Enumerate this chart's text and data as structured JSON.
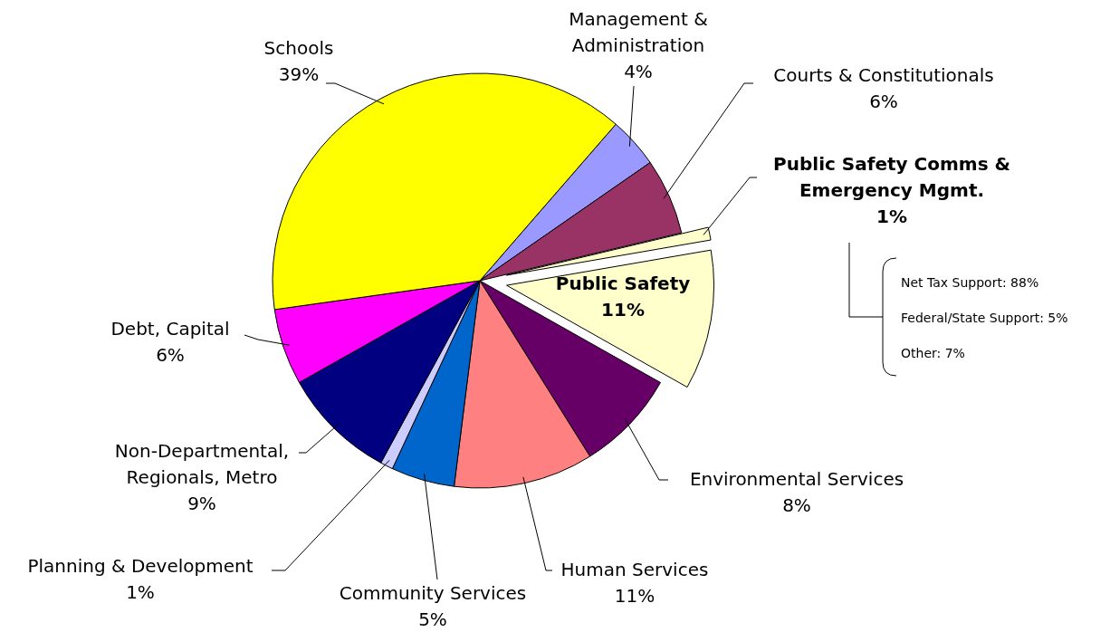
{
  "chart_data": {
    "type": "pie",
    "categories": [
      "Management & Administration",
      "Courts & Constitutionals",
      "Public Safety Comms & Emergency Mgmt.",
      "Public Safety",
      "Environmental Services",
      "Human Services",
      "Community Services",
      "Planning & Development",
      "Non-Departmental, Regionals, Metro",
      "Debt, Capital",
      "Schools"
    ],
    "values": [
      4,
      6,
      1,
      11,
      8,
      11,
      5,
      1,
      9,
      6,
      39
    ],
    "colors": [
      "#9999ff",
      "#993366",
      "#ffffcc",
      "#ffffcc",
      "#660066",
      "#ff8080",
      "#0066cc",
      "#ccccff",
      "#000080",
      "#ff00ff",
      "#ffff00"
    ],
    "value_labels": [
      "4%",
      "6%",
      "1%",
      "11%",
      "8%",
      "11%",
      "5%",
      "1%",
      "9%",
      "6%",
      "39%"
    ],
    "annotations": [
      "Net Tax Support: 88%",
      "Federal/State Support: 5%",
      "Other: 7%"
    ]
  }
}
